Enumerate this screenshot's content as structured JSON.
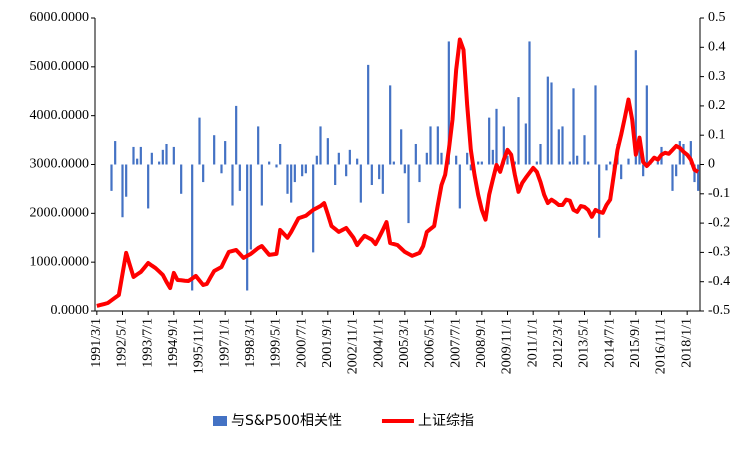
{
  "chart_data": {
    "type": "combo",
    "categories": [
      "1991/3/1",
      null,
      null,
      null,
      null,
      null,
      null,
      "1992/5/1",
      null,
      null,
      null,
      null,
      null,
      null,
      "1993/7/1",
      null,
      null,
      null,
      null,
      null,
      null,
      "1994/9/1",
      null,
      null,
      null,
      null,
      null,
      null,
      "1995/11/1",
      null,
      null,
      null,
      null,
      null,
      null,
      "1997/1/1",
      null,
      null,
      null,
      null,
      null,
      null,
      "1998/3/1",
      null,
      null,
      null,
      null,
      null,
      null,
      "1999/5/1",
      null,
      null,
      null,
      null,
      null,
      null,
      "2000/7/1",
      null,
      null,
      null,
      null,
      null,
      null,
      "2001/9/1",
      null,
      null,
      null,
      null,
      null,
      null,
      "2002/11/1",
      null,
      null,
      null,
      null,
      null,
      null,
      "2004/1/1",
      null,
      null,
      null,
      null,
      null,
      null,
      "2005/3/1",
      null,
      null,
      null,
      null,
      null,
      null,
      "2006/5/1",
      null,
      null,
      null,
      null,
      null,
      null,
      "2007/7/1",
      null,
      null,
      null,
      null,
      null,
      null,
      "2008/9/1",
      null,
      null,
      null,
      null,
      null,
      null,
      "2009/11/1",
      null,
      null,
      null,
      null,
      null,
      null,
      "2011/1/1",
      null,
      null,
      null,
      null,
      null,
      null,
      "2012/3/1",
      null,
      null,
      null,
      null,
      null,
      null,
      "2013/5/1",
      null,
      null,
      null,
      null,
      null,
      null,
      "2014/7/1",
      null,
      null,
      null,
      null,
      null,
      null,
      "2015/9/1",
      null,
      null,
      null,
      null,
      null,
      null,
      "2016/11/1",
      null,
      null,
      null,
      null,
      null,
      null,
      "2018/1/1",
      null,
      null,
      null
    ],
    "series": [
      {
        "name": "与S&P500相关性",
        "type": "bar",
        "axis": "y2",
        "color": "#4472c4",
        "values": [
          null,
          null,
          null,
          null,
          -0.09,
          0.08,
          null,
          -0.18,
          -0.11,
          null,
          0.06,
          0.02,
          0.06,
          null,
          -0.15,
          0.04,
          null,
          0.01,
          0.05,
          0.07,
          null,
          0.06,
          null,
          -0.1,
          null,
          null,
          -0.43,
          null,
          0.16,
          -0.06,
          null,
          null,
          0.1,
          null,
          -0.03,
          0.08,
          null,
          -0.14,
          0.2,
          -0.09,
          null,
          -0.43,
          -0.29,
          null,
          0.13,
          -0.14,
          null,
          0.01,
          null,
          -0.01,
          0.07,
          null,
          -0.1,
          -0.13,
          -0.06,
          null,
          -0.04,
          -0.03,
          null,
          -0.3,
          0.03,
          0.13,
          null,
          0.09,
          null,
          -0.07,
          0.04,
          null,
          -0.04,
          0.05,
          null,
          0.02,
          -0.13,
          null,
          0.34,
          -0.07,
          null,
          -0.05,
          -0.1,
          null,
          0.27,
          0.01,
          null,
          0.12,
          -0.03,
          -0.2,
          null,
          0.07,
          -0.06,
          null,
          0.04,
          0.13,
          null,
          0.13,
          0.04,
          null,
          0.42,
          null,
          0.03,
          -0.15,
          null,
          0.04,
          -0.02,
          null,
          0.01,
          0.01,
          null,
          0.16,
          0.05,
          0.19,
          null,
          0.13,
          0.03,
          null,
          0.01,
          0.23,
          null,
          0.14,
          0.42,
          null,
          0.01,
          0.07,
          null,
          0.3,
          0.28,
          null,
          0.12,
          0.13,
          null,
          0.01,
          0.26,
          0.03,
          null,
          0.1,
          0.01,
          null,
          0.27,
          -0.25,
          null,
          -0.02,
          0.01,
          -0.02,
          0.07,
          -0.05,
          null,
          0.02,
          null,
          0.39,
          0.09,
          -0.04,
          0.27,
          0.01,
          null,
          0.01,
          0.06,
          null,
          null,
          -0.09,
          -0.04,
          0.08,
          0.07,
          null,
          0.08,
          -0.06,
          -0.09
        ]
      },
      {
        "name": "上证综指",
        "type": "line",
        "color": "#ff0000",
        "values": [
          103,
          123,
          143,
          164,
          219,
          273,
          328,
          760,
          1190,
          940,
          697,
          750,
          800,
          890,
          984,
          930,
          880,
          810,
          738,
          595,
          470,
          780,
          635,
          630,
          620,
          615,
          665,
          718,
          625,
          533,
          554,
          690,
          820,
          860,
          902,
          1060,
          1210,
          1230,
          1250,
          1170,
          1087,
          1130,
          1170,
          1230,
          1290,
          1330,
          1240,
          1150,
          1160,
          1170,
          1660,
          1580,
          1500,
          1620,
          1760,
          1900,
          1925,
          1950,
          2010,
          2070,
          2110,
          2150,
          2210,
          1980,
          1740,
          1680,
          1620,
          1660,
          1700,
          1600,
          1500,
          1350,
          1450,
          1540,
          1500,
          1460,
          1370,
          1510,
          1660,
          1820,
          1390,
          1370,
          1350,
          1280,
          1210,
          1170,
          1130,
          1160,
          1190,
          1330,
          1620,
          1680,
          1740,
          2170,
          2580,
          2790,
          3300,
          3920,
          4940,
          5560,
          5350,
          4220,
          3300,
          2790,
          2380,
          2070,
          1870,
          2380,
          2690,
          2990,
          2850,
          3100,
          3300,
          3200,
          2790,
          2440,
          2620,
          2730,
          2830,
          2930,
          2850,
          2640,
          2380,
          2210,
          2280,
          2230,
          2170,
          2170,
          2280,
          2260,
          2070,
          2030,
          2150,
          2130,
          2070,
          1930,
          2070,
          2030,
          2010,
          2170,
          2280,
          2790,
          3300,
          3610,
          3960,
          4330,
          3920,
          3200,
          3550,
          3050,
          2970,
          3050,
          3140,
          3100,
          3200,
          3240,
          3220,
          3300,
          3380,
          3340,
          3260,
          3200,
          3100,
          2890,
          2850
        ]
      }
    ],
    "ylim": [
      0,
      6000
    ],
    "yticks": [
      {
        "value": 0,
        "label": "0.0000"
      },
      {
        "value": 1000,
        "label": "1000.0000"
      },
      {
        "value": 2000,
        "label": "2000.0000"
      },
      {
        "value": 3000,
        "label": "3000.0000"
      },
      {
        "value": 4000,
        "label": "4000.0000"
      },
      {
        "value": 5000,
        "label": "5000.0000"
      },
      {
        "value": 6000,
        "label": "6000.0000"
      }
    ],
    "y2lim": [
      -0.5,
      0.5
    ],
    "y2ticks": [
      -0.5,
      -0.4,
      -0.3,
      -0.2,
      -0.1,
      0,
      0.1,
      0.2,
      0.3,
      0.4,
      0.5
    ],
    "legend": "bottom"
  }
}
